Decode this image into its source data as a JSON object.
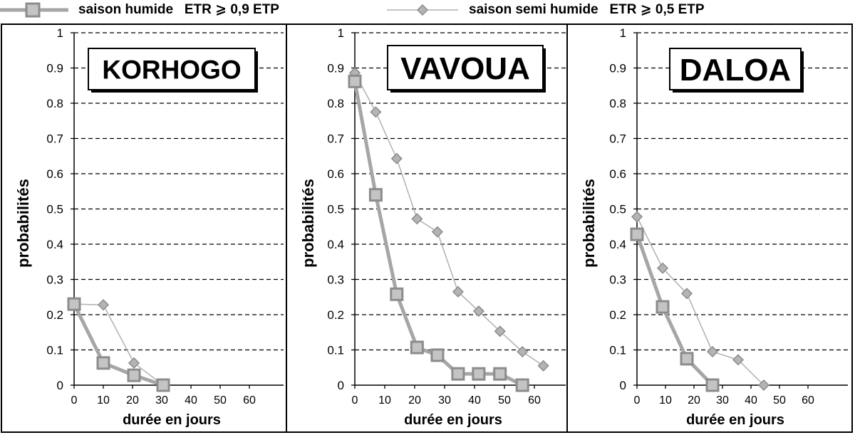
{
  "legend": [
    {
      "label": "saison humide   ETR ⩾ 0,9 ETP",
      "color": "#a6a6a6",
      "marker": "square"
    },
    {
      "label": "saison semi humide   ETR ⩾ 0,5 ETP",
      "color": "#a6a6a6",
      "marker": "diamond"
    }
  ],
  "chart_data": [
    {
      "type": "line",
      "title": "KORHOGO",
      "xlabel": "durée en jours",
      "ylabel": "probabilités",
      "xlim": [
        0,
        65
      ],
      "ylim": [
        0,
        1
      ],
      "xticks": [
        "0",
        "10",
        "20",
        "30",
        "40",
        "50",
        "60"
      ],
      "yticks": [
        "0",
        "0.1",
        "0.2",
        "0.3",
        "0.4",
        "0.5",
        "0.6",
        "0.7",
        "0.8",
        "0.9",
        "1"
      ],
      "grid": "horizontal dashed",
      "series": [
        {
          "name": "saison humide   ETR ⩾ 0,9 ETP",
          "x": [
            0,
            10,
            20.5,
            30.5
          ],
          "y": [
            0.23,
            0.063,
            0.028,
            0.0
          ]
        },
        {
          "name": "saison semi humide   ETR ⩾ 0,5 ETP",
          "x": [
            0,
            10,
            20.5,
            30.5
          ],
          "y": [
            0.23,
            0.228,
            0.063,
            0.0
          ]
        }
      ]
    },
    {
      "type": "line",
      "title": "VAVOUA",
      "xlabel": "durée en jours",
      "ylabel": "probabilités",
      "xlim": [
        0,
        65
      ],
      "ylim": [
        0,
        1
      ],
      "xticks": [
        "0",
        "10",
        "20",
        "30",
        "40",
        "50",
        "60"
      ],
      "yticks": [
        "0",
        "0.1",
        "0.2",
        "0.3",
        "0.4",
        "0.5",
        "0.6",
        "0.7",
        "0.8",
        "0.9",
        "1"
      ],
      "grid": "horizontal dashed",
      "series": [
        {
          "name": "saison humide   ETR ⩾ 0,9 ETP",
          "x": [
            0,
            7,
            14,
            20.8,
            27.6,
            34.5,
            41.4,
            48.5,
            56
          ],
          "y": [
            0.862,
            0.54,
            0.258,
            0.107,
            0.085,
            0.032,
            0.032,
            0.032,
            0.0
          ]
        },
        {
          "name": "saison semi humide   ETR ⩾ 0,5 ETP",
          "x": [
            0,
            7,
            14,
            20.8,
            27.6,
            34.5,
            41.4,
            48.5,
            56,
            63
          ],
          "y": [
            0.886,
            0.775,
            0.643,
            0.472,
            0.435,
            0.265,
            0.21,
            0.153,
            0.095,
            0.055
          ]
        }
      ]
    },
    {
      "type": "line",
      "title": "DALOA",
      "xlabel": "durée en jours",
      "ylabel": "probabilités",
      "xlim": [
        0,
        65
      ],
      "ylim": [
        0,
        1
      ],
      "xticks": [
        "0",
        "10",
        "20",
        "30",
        "40",
        "50",
        "60"
      ],
      "yticks": [
        "0",
        "0.1",
        "0.2",
        "0.3",
        "0.4",
        "0.5",
        "0.6",
        "0.7",
        "0.8",
        "0.9",
        "1"
      ],
      "grid": "horizontal dashed",
      "series": [
        {
          "name": "saison humide   ETR ⩾ 0,9 ETP",
          "x": [
            0,
            9,
            17.5,
            26.5
          ],
          "y": [
            0.428,
            0.222,
            0.075,
            0.0
          ]
        },
        {
          "name": "saison semi humide   ETR ⩾ 0,5 ETP",
          "x": [
            0,
            9,
            17.5,
            26.5,
            35.5,
            44.5
          ],
          "y": [
            0.478,
            0.332,
            0.26,
            0.095,
            0.072,
            0.0
          ]
        }
      ]
    }
  ]
}
